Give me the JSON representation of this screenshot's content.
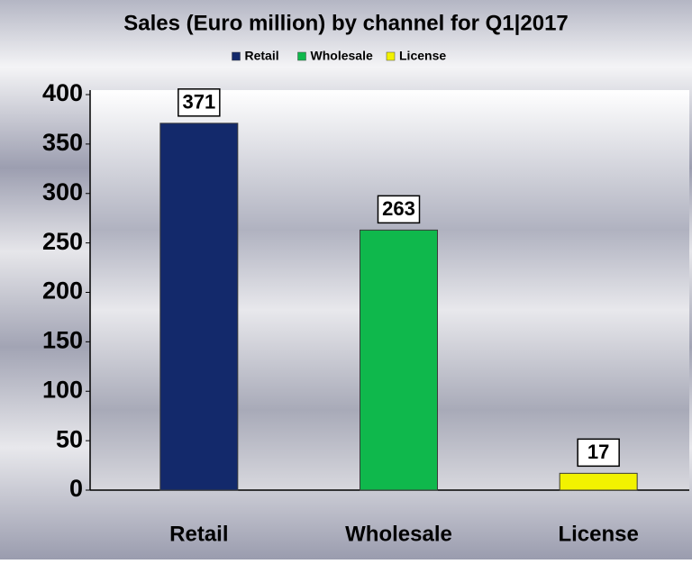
{
  "chart_data": {
    "type": "bar",
    "title": "Sales (Euro million) by channel  for Q1|2017",
    "categories": [
      "Retail",
      "Wholesale",
      "License"
    ],
    "values": [
      371,
      263,
      17
    ],
    "colors": [
      "#13296b",
      "#0fb84c",
      "#f2f200"
    ],
    "ylim": [
      0,
      400
    ],
    "yticks": [
      0,
      50,
      100,
      150,
      200,
      250,
      300,
      350,
      400
    ],
    "legend": "top"
  }
}
